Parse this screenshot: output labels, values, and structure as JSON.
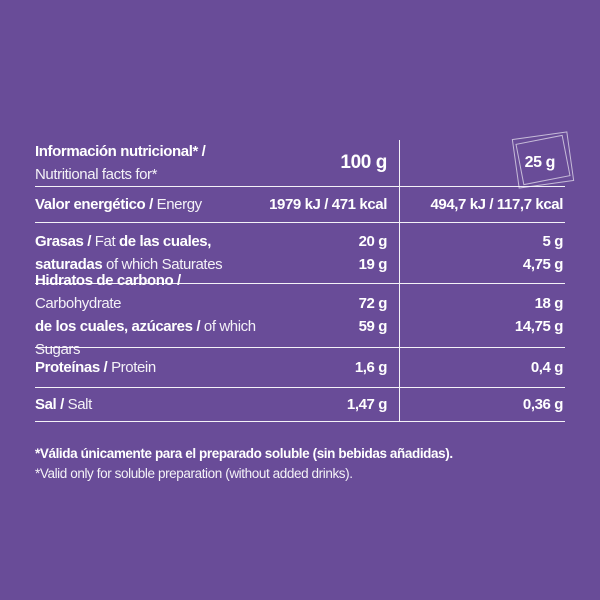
{
  "colors": {
    "background": "#694c98",
    "line": "#ffffff",
    "text": "#ffffff"
  },
  "header": {
    "title_es": "Información nutricional* / ",
    "title_en": "Nutritional facts for*",
    "col_100": "100 g",
    "col_25": "25 g",
    "col_25_icon": "sachet-icon"
  },
  "rows": [
    {
      "name": "energy",
      "line1": [
        {
          "t": "Valor energético / ",
          "b": 1
        },
        {
          "t": "Energy",
          "b": 0
        }
      ],
      "v1": [
        "1979 kJ / 471 kcal"
      ],
      "v2": [
        "494,7 kJ / 117,7 kcal"
      ]
    },
    {
      "name": "fat",
      "line1": [
        {
          "t": "Grasas / ",
          "b": 1
        },
        {
          "t": "Fat ",
          "b": 0
        },
        {
          "t": "de las cuales,",
          "b": 1
        }
      ],
      "line2": [
        {
          "t": "saturadas ",
          "b": 1
        },
        {
          "t": "of which Saturates",
          "b": 0
        }
      ],
      "v1": [
        "20 g",
        "19 g"
      ],
      "v2": [
        "5 g",
        "4,75 g"
      ]
    },
    {
      "name": "carbohydrate",
      "line1": [
        {
          "t": "Hidratos de carbono / ",
          "b": 1
        },
        {
          "t": "Carbohydrate",
          "b": 0
        }
      ],
      "line2": [
        {
          "t": "de los cuales, azúcares / ",
          "b": 1
        },
        {
          "t": "of which Sugars",
          "b": 0
        }
      ],
      "v1": [
        "72 g",
        "59 g"
      ],
      "v2": [
        "18 g",
        "14,75 g"
      ]
    },
    {
      "name": "protein",
      "line1": [
        {
          "t": "Proteínas / ",
          "b": 1
        },
        {
          "t": "Protein",
          "b": 0
        }
      ],
      "v1": [
        "1,6 g"
      ],
      "v2": [
        "0,4 g"
      ]
    },
    {
      "name": "salt",
      "line1": [
        {
          "t": "Sal / ",
          "b": 1
        },
        {
          "t": "Salt",
          "b": 0
        }
      ],
      "v1": [
        "1,47 g"
      ],
      "v2": [
        "0,36 g"
      ]
    }
  ],
  "footnote": {
    "es": "*Válida únicamente para el preparado soluble (sin bebidas añadidas).",
    "en": "*Valid only for soluble preparation (without added drinks)."
  }
}
